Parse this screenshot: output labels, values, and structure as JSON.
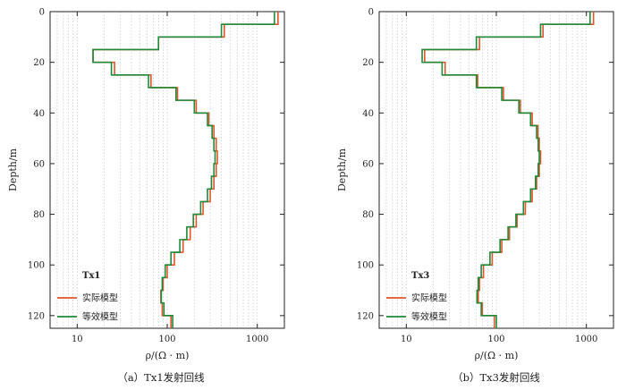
{
  "chart_data": [
    {
      "type": "line",
      "panel": "a",
      "caption": "（a）Tx1发射回线",
      "ylabel": "Depth/m",
      "xlabel": "ρ/(Ω · m)",
      "x_scale": "log",
      "xlim": [
        5,
        2000
      ],
      "ylim": [
        0,
        125
      ],
      "y_inverted": true,
      "x_ticks": [
        10,
        100,
        1000
      ],
      "y_ticks": [
        0,
        20,
        40,
        60,
        80,
        100,
        120
      ],
      "grid": "vertical minor",
      "legend": {
        "title": "Tx1",
        "position": "bottom-left"
      },
      "series": [
        {
          "name": "实际模型",
          "color": "#e0562a",
          "steps": [
            [
              1700,
              0,
              5
            ],
            [
              430,
              5,
              10
            ],
            [
              80,
              10,
              15
            ],
            [
              15,
              15,
              20
            ],
            [
              26,
              20,
              25
            ],
            [
              66,
              25,
              30
            ],
            [
              130,
              30,
              35
            ],
            [
              210,
              35,
              40
            ],
            [
              290,
              40,
              45
            ],
            [
              330,
              45,
              50
            ],
            [
              350,
              50,
              55
            ],
            [
              360,
              55,
              60
            ],
            [
              350,
              60,
              65
            ],
            [
              330,
              65,
              70
            ],
            [
              300,
              70,
              75
            ],
            [
              250,
              75,
              80
            ],
            [
              210,
              80,
              85
            ],
            [
              180,
              85,
              90
            ],
            [
              150,
              90,
              95
            ],
            [
              120,
              95,
              100
            ],
            [
              100,
              100,
              105
            ],
            [
              90,
              105,
              110
            ],
            [
              85,
              110,
              115
            ],
            [
              88,
              115,
              120
            ],
            [
              110,
              120,
              125
            ]
          ]
        },
        {
          "name": "等效模型",
          "color": "#1f8a3a",
          "steps": [
            [
              1550,
              0,
              5
            ],
            [
              400,
              5,
              10
            ],
            [
              80,
              10,
              15
            ],
            [
              15,
              15,
              20
            ],
            [
              24,
              20,
              25
            ],
            [
              62,
              25,
              30
            ],
            [
              125,
              30,
              35
            ],
            [
              200,
              35,
              40
            ],
            [
              280,
              40,
              45
            ],
            [
              315,
              45,
              50
            ],
            [
              330,
              50,
              55
            ],
            [
              340,
              55,
              60
            ],
            [
              330,
              60,
              65
            ],
            [
              310,
              65,
              70
            ],
            [
              280,
              70,
              75
            ],
            [
              235,
              75,
              80
            ],
            [
              195,
              80,
              85
            ],
            [
              165,
              85,
              90
            ],
            [
              138,
              90,
              95
            ],
            [
              110,
              95,
              100
            ],
            [
              95,
              100,
              105
            ],
            [
              88,
              105,
              110
            ],
            [
              86,
              110,
              115
            ],
            [
              92,
              115,
              120
            ],
            [
              115,
              120,
              125
            ]
          ]
        }
      ]
    },
    {
      "type": "line",
      "panel": "b",
      "caption": "（b）Tx3发射回线",
      "ylabel": "Depth/m",
      "xlabel": "ρ/(Ω · m)",
      "x_scale": "log",
      "xlim": [
        5,
        2000
      ],
      "ylim": [
        0,
        125
      ],
      "y_inverted": true,
      "x_ticks": [
        10,
        100,
        1000
      ],
      "y_ticks": [
        0,
        20,
        40,
        60,
        80,
        100,
        120
      ],
      "grid": "vertical minor",
      "legend": {
        "title": "Tx3",
        "position": "bottom-left"
      },
      "series": [
        {
          "name": "实际模型",
          "color": "#e0562a",
          "steps": [
            [
              1200,
              0,
              5
            ],
            [
              330,
              5,
              10
            ],
            [
              65,
              10,
              15
            ],
            [
              16,
              15,
              20
            ],
            [
              27,
              20,
              25
            ],
            [
              62,
              25,
              30
            ],
            [
              120,
              30,
              35
            ],
            [
              185,
              35,
              40
            ],
            [
              250,
              40,
              45
            ],
            [
              290,
              45,
              50
            ],
            [
              300,
              50,
              55
            ],
            [
              310,
              55,
              60
            ],
            [
              300,
              60,
              65
            ],
            [
              280,
              65,
              70
            ],
            [
              250,
              70,
              75
            ],
            [
              210,
              75,
              80
            ],
            [
              170,
              80,
              85
            ],
            [
              140,
              85,
              90
            ],
            [
              115,
              90,
              95
            ],
            [
              90,
              95,
              100
            ],
            [
              72,
              100,
              105
            ],
            [
              65,
              105,
              110
            ],
            [
              63,
              110,
              115
            ],
            [
              70,
              115,
              120
            ],
            [
              95,
              120,
              125
            ]
          ]
        },
        {
          "name": "等效模型",
          "color": "#1f8a3a",
          "steps": [
            [
              1100,
              0,
              5
            ],
            [
              310,
              5,
              10
            ],
            [
              60,
              10,
              15
            ],
            [
              15,
              15,
              20
            ],
            [
              25,
              20,
              25
            ],
            [
              60,
              25,
              30
            ],
            [
              115,
              30,
              35
            ],
            [
              178,
              35,
              40
            ],
            [
              240,
              40,
              45
            ],
            [
              280,
              45,
              50
            ],
            [
              292,
              50,
              55
            ],
            [
              300,
              55,
              60
            ],
            [
              292,
              60,
              65
            ],
            [
              272,
              65,
              70
            ],
            [
              240,
              70,
              75
            ],
            [
              200,
              75,
              80
            ],
            [
              165,
              80,
              85
            ],
            [
              135,
              85,
              90
            ],
            [
              110,
              90,
              95
            ],
            [
              85,
              95,
              100
            ],
            [
              68,
              100,
              105
            ],
            [
              63,
              105,
              110
            ],
            [
              61,
              110,
              115
            ],
            [
              68,
              115,
              120
            ],
            [
              100,
              120,
              125
            ]
          ]
        }
      ]
    }
  ]
}
